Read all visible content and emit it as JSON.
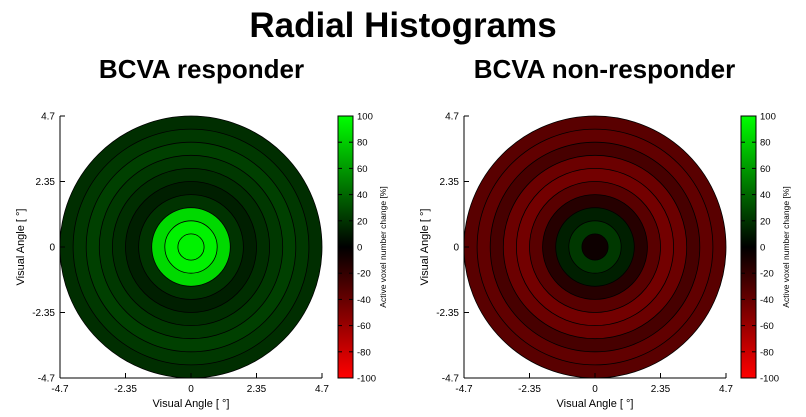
{
  "title": "Radial Histograms",
  "chart_data": [
    {
      "type": "radial-histogram",
      "title": "BCVA responder",
      "xlabel": "Visual Angle [   °]",
      "ylabel": "Visual Angle [   °]",
      "xlim": [
        -4.7,
        4.7
      ],
      "ylim": [
        -4.7,
        4.7
      ],
      "x_ticks": [
        "-4.7",
        "-2.35",
        "0",
        "2.35",
        "4.7"
      ],
      "y_ticks": [
        "4.7",
        "2.35",
        "0",
        "-2.35",
        "-4.7"
      ],
      "ring_outer_radii_deg": [
        0.47,
        0.94,
        1.41,
        1.88,
        2.35,
        2.82,
        3.29,
        3.76,
        4.23,
        4.7
      ],
      "ring_values": [
        95,
        95,
        85,
        20,
        12,
        18,
        22,
        25,
        22,
        18
      ],
      "colorbar": {
        "label": "Active voxel number change [%]",
        "range": [
          -100,
          100
        ],
        "ticks": [
          "100",
          "80",
          "60",
          "40",
          "20",
          "0",
          "-20",
          "-40",
          "-60",
          "-80",
          "-100"
        ],
        "color_positive": "#00ff00",
        "color_zero": "#000000",
        "color_negative": "#ff0000"
      }
    },
    {
      "type": "radial-histogram",
      "title": "BCVA non-responder",
      "xlabel": "Visual Angle [   °]",
      "ylabel": "Visual Angle [   °]",
      "xlim": [
        -4.7,
        4.7
      ],
      "ylim": [
        -4.7,
        4.7
      ],
      "x_ticks": [
        "-4.7",
        "-2.35",
        "0",
        "2.35",
        "4.7"
      ],
      "y_ticks": [
        "4.7",
        "2.35",
        "0",
        "-2.35",
        "-4.7"
      ],
      "ring_outer_radii_deg": [
        0.47,
        0.94,
        1.41,
        1.88,
        2.35,
        2.82,
        3.29,
        3.76,
        4.23,
        4.7
      ],
      "ring_values": [
        -5,
        22,
        12,
        -15,
        -35,
        -45,
        -42,
        -28,
        -38,
        -35
      ],
      "colorbar": {
        "label": "Active voxel number change [%]",
        "range": [
          -100,
          100
        ],
        "ticks": [
          "100",
          "80",
          "60",
          "40",
          "20",
          "0",
          "-20",
          "-40",
          "-60",
          "-80",
          "-100"
        ],
        "color_positive": "#00ff00",
        "color_zero": "#000000",
        "color_negative": "#ff0000"
      }
    }
  ]
}
